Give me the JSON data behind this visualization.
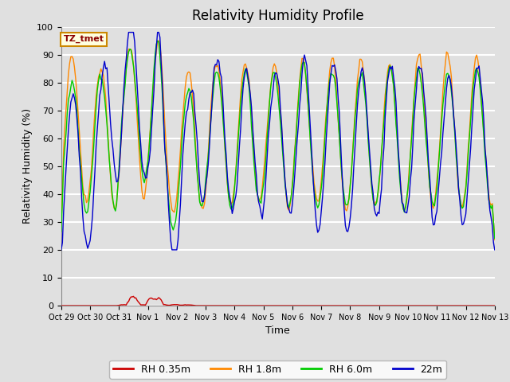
{
  "title": "Relativity Humidity Profile",
  "xlabel": "Time",
  "ylabel": "Relativity Humidity (%)",
  "ylim": [
    0,
    100
  ],
  "yticks": [
    0,
    10,
    20,
    30,
    40,
    50,
    60,
    70,
    80,
    90,
    100
  ],
  "xtick_labels": [
    "Oct 29",
    "Oct 30",
    "Oct 31",
    "Nov 1",
    "Nov 2",
    "Nov 3",
    "Nov 4",
    "Nov 5",
    "Nov 6",
    "Nov 7",
    "Nov 8",
    "Nov 9",
    "Nov 10",
    "Nov 11",
    "Nov 12",
    "Nov 13"
  ],
  "num_days": 15,
  "colors": {
    "red": "#cc0000",
    "orange": "#ff8800",
    "green": "#00cc00",
    "blue": "#0000cc"
  },
  "legend_labels": [
    "RH 0.35m",
    "RH 1.8m",
    "RH 6.0m",
    "22m"
  ],
  "legend_box_label": "TZ_tmet",
  "background_color": "#e0e0e0",
  "plot_bg_color": "#e0e0e0",
  "title_fontsize": 12,
  "axis_fontsize": 9,
  "tick_fontsize": 8,
  "grid_color": "#ffffff",
  "grid_lw": 1.5
}
